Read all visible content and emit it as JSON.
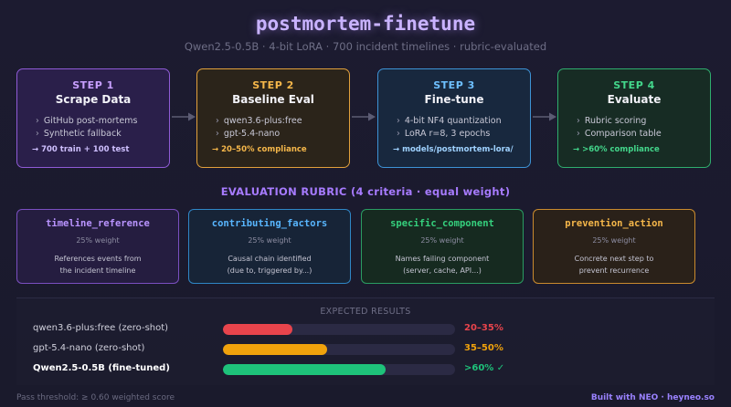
{
  "header": {
    "title": "postmortem-finetune",
    "subtitle": "Qwen2.5-0.5B · 4-bit LoRA · 700 incident timelines · rubric-evaluated"
  },
  "colors": {
    "step1": "#8f5bd6",
    "step2": "#e2a13b",
    "step3": "#3d93d6",
    "step4": "#2fae6e",
    "bar_zero_shot_1": "#e8444c",
    "bar_zero_shot_2": "#f0a20c",
    "bar_finetuned": "#1ec27a"
  },
  "steps": [
    {
      "number": "STEP 1",
      "title": "Scrape Data",
      "bullets": [
        "GitHub post-mortems",
        "Synthetic fallback"
      ],
      "result": "→ 700 train + 100 test"
    },
    {
      "number": "STEP 2",
      "title": "Baseline Eval",
      "bullets": [
        "qwen3.6-plus:free",
        "gpt-5.4-nano"
      ],
      "result": "→ 20–50% compliance"
    },
    {
      "number": "STEP 3",
      "title": "Fine-tune",
      "bullets": [
        "4-bit NF4 quantization",
        "LoRA r=8, 3 epochs"
      ],
      "result": "→ models/postmortem-lora/"
    },
    {
      "number": "STEP 4",
      "title": "Evaluate",
      "bullets": [
        "Rubric scoring",
        "Comparison table"
      ],
      "result": "→ >60% compliance"
    }
  ],
  "rubric": {
    "heading": "EVALUATION RUBRIC (4 criteria · equal weight)",
    "criteria": [
      {
        "name": "timeline_reference",
        "weight": "25% weight",
        "desc_line1": "References events from",
        "desc_line2": "the incident timeline"
      },
      {
        "name": "contributing_factors",
        "weight": "25% weight",
        "desc_line1": "Causal chain identified",
        "desc_line2": "(due to, triggered by...)"
      },
      {
        "name": "specific_component",
        "weight": "25% weight",
        "desc_line1": "Names failing component",
        "desc_line2": "(server, cache, API...)"
      },
      {
        "name": "prevention_action",
        "weight": "25% weight",
        "desc_line1": "Concrete next step to",
        "desc_line2": "prevent recurrence"
      }
    ]
  },
  "results": {
    "heading": "EXPECTED RESULTS",
    "rows": [
      {
        "label": "qwen3.6-plus:free (zero-shot)",
        "value_text": "20–35%",
        "fill_fraction": 0.3
      },
      {
        "label": "gpt-5.4-nano (zero-shot)",
        "value_text": "35–50%",
        "fill_fraction": 0.45
      },
      {
        "label": "Qwen2.5-0.5B (fine-tuned)",
        "value_text": ">60% ✓",
        "fill_fraction": 0.7
      }
    ]
  },
  "footer": {
    "left": "Pass threshold: ≥ 0.60 weighted score",
    "right": "Built with NEO · heyneo.so"
  }
}
